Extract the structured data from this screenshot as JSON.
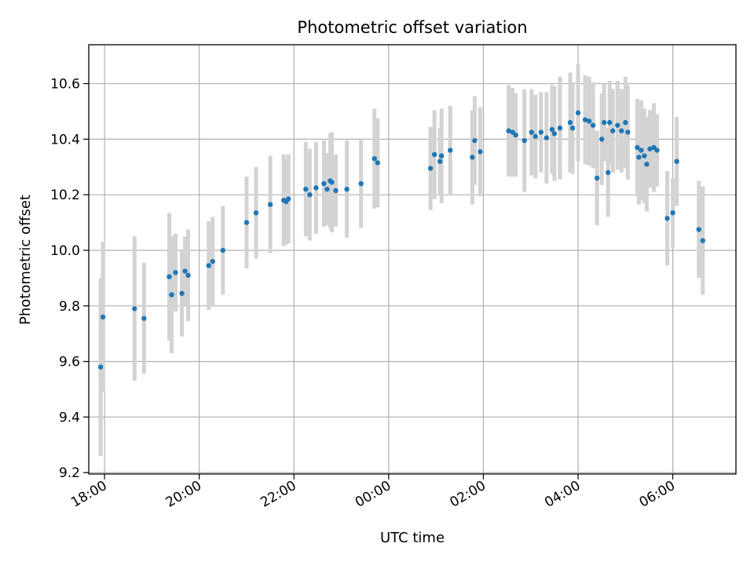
{
  "chart_data": {
    "type": "scatter",
    "title": "Photometric offset variation",
    "xlabel": "UTC time",
    "ylabel": "Photometric offset",
    "x_axis_type": "time",
    "xlim": [
      "17:40",
      "07:20"
    ],
    "ylim": [
      9.195,
      10.74
    ],
    "x_ticks": [
      "18:00",
      "20:00",
      "22:00",
      "00:00",
      "02:00",
      "04:00",
      "06:00"
    ],
    "y_ticks": [
      9.2,
      9.4,
      9.6,
      9.8,
      10.0,
      10.2,
      10.4,
      10.6
    ],
    "grid": true,
    "legend": "none",
    "colors": {
      "points": "#1f77b4",
      "error_bars": "#d3d3d3",
      "grid": "#b0b0b0",
      "axes": "#000000"
    },
    "points": [
      {
        "x": "17:55",
        "y": 9.58,
        "err": 0.32
      },
      {
        "x": "17:58",
        "y": 9.76,
        "err": 0.27
      },
      {
        "x": "18:38",
        "y": 9.79,
        "err": 0.26
      },
      {
        "x": "18:50",
        "y": 9.755,
        "err": 0.2
      },
      {
        "x": "19:22",
        "y": 9.905,
        "err": 0.23
      },
      {
        "x": "19:25",
        "y": 9.84,
        "err": 0.21
      },
      {
        "x": "19:30",
        "y": 9.92,
        "err": 0.14
      },
      {
        "x": "19:38",
        "y": 9.845,
        "err": 0.155
      },
      {
        "x": "19:42",
        "y": 9.925,
        "err": 0.125
      },
      {
        "x": "19:46",
        "y": 9.91,
        "err": 0.165
      },
      {
        "x": "20:12",
        "y": 9.945,
        "err": 0.16
      },
      {
        "x": "20:17",
        "y": 9.96,
        "err": 0.16
      },
      {
        "x": "20:30",
        "y": 10.0,
        "err": 0.16
      },
      {
        "x": "21:00",
        "y": 10.1,
        "err": 0.165
      },
      {
        "x": "21:12",
        "y": 10.135,
        "err": 0.165
      },
      {
        "x": "21:30",
        "y": 10.165,
        "err": 0.175
      },
      {
        "x": "21:47",
        "y": 10.18,
        "err": 0.165
      },
      {
        "x": "21:50",
        "y": 10.175,
        "err": 0.155
      },
      {
        "x": "21:53",
        "y": 10.185,
        "err": 0.16
      },
      {
        "x": "22:15",
        "y": 10.22,
        "err": 0.17
      },
      {
        "x": "22:20",
        "y": 10.2,
        "err": 0.165
      },
      {
        "x": "22:28",
        "y": 10.225,
        "err": 0.165
      },
      {
        "x": "22:38",
        "y": 10.24,
        "err": 0.155
      },
      {
        "x": "22:42",
        "y": 10.22,
        "err": 0.13
      },
      {
        "x": "22:46",
        "y": 10.25,
        "err": 0.17
      },
      {
        "x": "22:48",
        "y": 10.245,
        "err": 0.18
      },
      {
        "x": "22:53",
        "y": 10.215,
        "err": 0.13
      },
      {
        "x": "23:07",
        "y": 10.22,
        "err": 0.175
      },
      {
        "x": "23:25",
        "y": 10.24,
        "err": 0.16
      },
      {
        "x": "23:42",
        "y": 10.33,
        "err": 0.18
      },
      {
        "x": "23:46",
        "y": 10.315,
        "err": 0.16
      },
      {
        "x": "00:53",
        "y": 10.295,
        "err": 0.15
      },
      {
        "x": "00:58",
        "y": 10.345,
        "err": 0.16
      },
      {
        "x": "01:05",
        "y": 10.32,
        "err": 0.12
      },
      {
        "x": "01:07",
        "y": 10.34,
        "err": 0.17
      },
      {
        "x": "01:18",
        "y": 10.36,
        "err": 0.16
      },
      {
        "x": "01:46",
        "y": 10.335,
        "err": 0.17
      },
      {
        "x": "01:49",
        "y": 10.395,
        "err": 0.16
      },
      {
        "x": "01:56",
        "y": 10.355,
        "err": 0.16
      },
      {
        "x": "02:32",
        "y": 10.43,
        "err": 0.165
      },
      {
        "x": "02:37",
        "y": 10.425,
        "err": 0.16
      },
      {
        "x": "02:41",
        "y": 10.415,
        "err": 0.15
      },
      {
        "x": "02:52",
        "y": 10.395,
        "err": 0.185
      },
      {
        "x": "03:01",
        "y": 10.425,
        "err": 0.155
      },
      {
        "x": "03:06",
        "y": 10.41,
        "err": 0.15
      },
      {
        "x": "03:13",
        "y": 10.425,
        "err": 0.145
      },
      {
        "x": "03:20",
        "y": 10.405,
        "err": 0.165
      },
      {
        "x": "03:27",
        "y": 10.435,
        "err": 0.16
      },
      {
        "x": "03:30",
        "y": 10.42,
        "err": 0.17
      },
      {
        "x": "03:37",
        "y": 10.44,
        "err": 0.185
      },
      {
        "x": "03:50",
        "y": 10.46,
        "err": 0.18
      },
      {
        "x": "03:53",
        "y": 10.44,
        "err": 0.165
      },
      {
        "x": "04:00",
        "y": 10.495,
        "err": 0.175
      },
      {
        "x": "04:09",
        "y": 10.47,
        "err": 0.16
      },
      {
        "x": "04:14",
        "y": 10.465,
        "err": 0.16
      },
      {
        "x": "04:19",
        "y": 10.45,
        "err": 0.155
      },
      {
        "x": "04:24",
        "y": 10.26,
        "err": 0.17
      },
      {
        "x": "04:30",
        "y": 10.4,
        "err": 0.165
      },
      {
        "x": "04:33",
        "y": 10.46,
        "err": 0.14
      },
      {
        "x": "04:38",
        "y": 10.28,
        "err": 0.16
      },
      {
        "x": "04:40",
        "y": 10.46,
        "err": 0.15
      },
      {
        "x": "04:44",
        "y": 10.43,
        "err": 0.15
      },
      {
        "x": "04:50",
        "y": 10.45,
        "err": 0.16
      },
      {
        "x": "04:55",
        "y": 10.43,
        "err": 0.15
      },
      {
        "x": "05:00",
        "y": 10.46,
        "err": 0.165
      },
      {
        "x": "05:03",
        "y": 10.425,
        "err": 0.17
      },
      {
        "x": "05:15",
        "y": 10.37,
        "err": 0.175
      },
      {
        "x": "05:17",
        "y": 10.335,
        "err": 0.17
      },
      {
        "x": "05:20",
        "y": 10.36,
        "err": 0.18
      },
      {
        "x": "05:24",
        "y": 10.34,
        "err": 0.17
      },
      {
        "x": "05:27",
        "y": 10.31,
        "err": 0.17
      },
      {
        "x": "05:31",
        "y": 10.365,
        "err": 0.14
      },
      {
        "x": "05:36",
        "y": 10.37,
        "err": 0.16
      },
      {
        "x": "05:40",
        "y": 10.36,
        "err": 0.13
      },
      {
        "x": "05:53",
        "y": 10.115,
        "err": 0.17
      },
      {
        "x": "06:00",
        "y": 10.135,
        "err": 0.125
      },
      {
        "x": "06:05",
        "y": 10.32,
        "err": 0.16
      },
      {
        "x": "06:33",
        "y": 10.075,
        "err": 0.175
      },
      {
        "x": "06:38",
        "y": 10.035,
        "err": 0.195
      }
    ]
  }
}
